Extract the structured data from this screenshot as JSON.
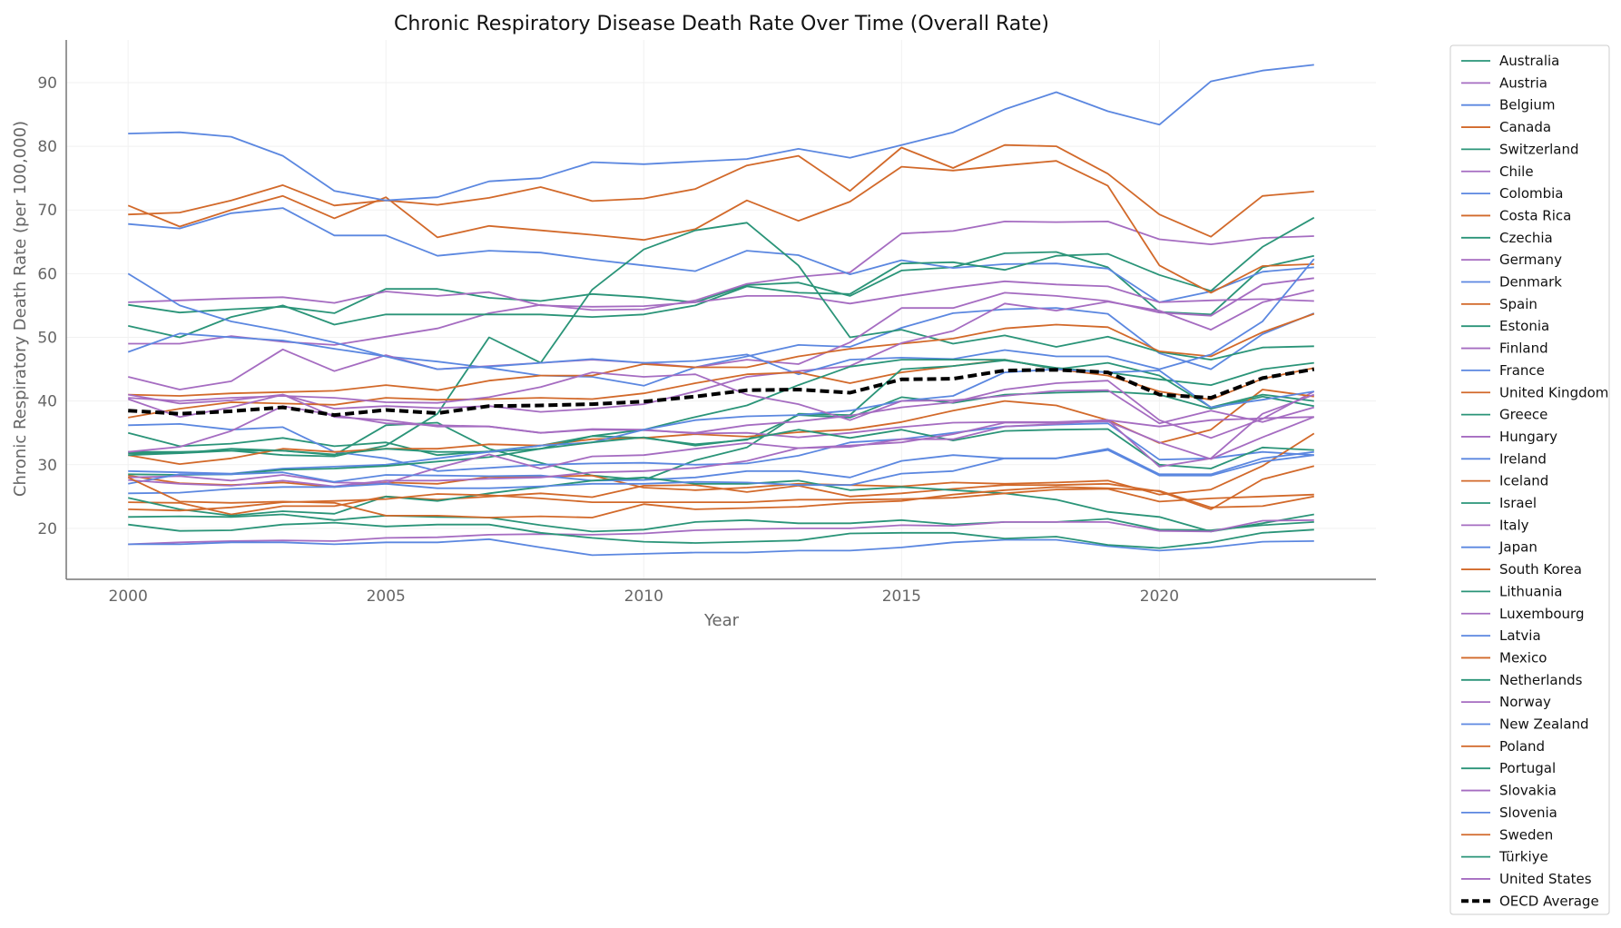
{
  "chart_data": {
    "type": "line",
    "title": "Chronic Respiratory Disease Death Rate Over Time (Overall Rate)",
    "xlabel": "Year",
    "ylabel": "Chronic Respiratory Death Rate (per 100,000)",
    "xlim": [
      1998.8,
      2024.2
    ],
    "ylim": [
      12,
      96.7
    ],
    "xticks": [
      2000,
      2005,
      2010,
      2015,
      2020
    ],
    "yticks": [
      20,
      30,
      40,
      50,
      60,
      70,
      80,
      90
    ],
    "grid": true,
    "legend_placement": "outside-right",
    "colors": {
      "teal": "#2a9478",
      "purple": "#a56cc1",
      "blue": "#5b87e0",
      "orange": "#d2692a",
      "average": "#000000"
    },
    "x": [
      2000,
      2001,
      2002,
      2003,
      2004,
      2005,
      2006,
      2007,
      2008,
      2009,
      2010,
      2011,
      2012,
      2013,
      2014,
      2015,
      2016,
      2017,
      2018,
      2019,
      2020,
      2021,
      2022,
      2023
    ],
    "series": [
      {
        "name": "Australia",
        "color": "teal",
        "values": [
          55.1,
          53.9,
          54.4,
          54.8,
          53.8,
          57.6,
          57.6,
          56.2,
          55.7,
          56.8,
          56.3,
          55.5,
          58.2,
          58.6,
          56.5,
          60.5,
          61,
          63.2,
          63.4,
          61,
          54,
          53.6,
          61,
          62.8
        ]
      },
      {
        "name": "Austria",
        "color": "purple",
        "values": [
          49,
          49,
          50.2,
          49.3,
          48.8,
          50.1,
          51.4,
          53.8,
          55.1,
          54.3,
          54.4,
          55.8,
          58.4,
          59.5,
          60.2,
          66.3,
          66.7,
          68.2,
          68.1,
          68.2,
          65.4,
          64.6,
          65.6,
          65.9
        ]
      },
      {
        "name": "Belgium",
        "color": "blue",
        "values": [
          67.8,
          67.1,
          69.5,
          70.3,
          66,
          66,
          62.8,
          63.6,
          63.3,
          62.2,
          61.3,
          60.4,
          63.6,
          62.9,
          59.9,
          62.1,
          60.9,
          61.5,
          61.6,
          60.8,
          55.5,
          57.2,
          60.3,
          61
        ]
      },
      {
        "name": "Canada",
        "color": "orange",
        "values": [
          69.3,
          69.6,
          71.5,
          73.9,
          70.7,
          71.5,
          70.8,
          71.9,
          73.6,
          71.4,
          71.8,
          73.3,
          77,
          78.5,
          73,
          79.8,
          76.6,
          80.2,
          80,
          75.7,
          69.3,
          65.8,
          72.2,
          72.9
        ]
      },
      {
        "name": "Switzerland",
        "color": "teal",
        "values": [
          51.8,
          50,
          53.2,
          55,
          52,
          53.6,
          53.6,
          53.6,
          53.6,
          53.2,
          53.6,
          55,
          58,
          57,
          56.8,
          61.6,
          61.8,
          60.6,
          62.8,
          63.1,
          59.8,
          57.3,
          64.2,
          68.8
        ]
      },
      {
        "name": "Chile",
        "color": "purple",
        "values": [
          55.5,
          55.8,
          56.1,
          56.3,
          55.4,
          57.2,
          56.5,
          57.1,
          55,
          54.8,
          54.9,
          55.5,
          56.5,
          56.5,
          55.3,
          56.6,
          57.8,
          58.8,
          58.3,
          58,
          55.5,
          55.8,
          56,
          55.7
        ]
      },
      {
        "name": "Colombia",
        "color": "blue",
        "values": [
          60,
          55,
          52.5,
          51,
          49.2,
          47,
          46.2,
          45.2,
          44,
          43.8,
          42.4,
          45.3,
          47,
          48.8,
          48.5,
          51.5,
          53.8,
          54.4,
          54.6,
          53.7,
          47.5,
          45,
          50.5,
          53.8
        ]
      },
      {
        "name": "Costa Rica",
        "color": "orange",
        "values": [
          70.7,
          67.4,
          70,
          72.2,
          68.7,
          72,
          65.7,
          67.5,
          66.8,
          66.1,
          65.3,
          67,
          71.5,
          68.3,
          71.3,
          76.8,
          76.2,
          77,
          77.7,
          73.8,
          61.3,
          57,
          61.2,
          61.5
        ]
      },
      {
        "name": "Czechia",
        "color": "teal",
        "values": [
          31.8,
          31.8,
          32.2,
          31.5,
          31.3,
          33,
          38,
          50,
          46,
          57.5,
          63.8,
          66.8,
          68,
          61.3,
          50,
          51.2,
          49,
          50.3,
          48.5,
          50.1,
          47.7,
          46.5,
          48.4,
          48.6
        ]
      },
      {
        "name": "Germany",
        "color": "purple",
        "values": [
          43.8,
          41.8,
          43.1,
          48.1,
          44.7,
          47.2,
          45,
          45.5,
          46,
          46.5,
          46,
          45.3,
          46.5,
          45.8,
          49.2,
          54.6,
          54.6,
          57,
          56.5,
          55.7,
          53.9,
          53.4,
          58.3,
          59.3
        ]
      },
      {
        "name": "Denmark",
        "color": "blue",
        "values": [
          82,
          82.2,
          81.5,
          78.5,
          73,
          71.5,
          72,
          74.5,
          75,
          77.5,
          77.2,
          77.6,
          78,
          79.6,
          78.2,
          80.2,
          82.2,
          85.8,
          88.5,
          85.5,
          83.4,
          90.2,
          91.9,
          92.8
        ]
      },
      {
        "name": "Spain",
        "color": "orange",
        "values": [
          41,
          40.8,
          41.2,
          41.4,
          41.6,
          42.5,
          41.7,
          43.2,
          44,
          44,
          45.8,
          45.3,
          45.3,
          47,
          48.2,
          49,
          49.8,
          51.4,
          52,
          51.6,
          47.8,
          47,
          50.8,
          53.7
        ]
      },
      {
        "name": "Estonia",
        "color": "teal",
        "values": [
          35,
          32.9,
          33.3,
          34.2,
          32.9,
          33.5,
          31.5,
          32.1,
          33,
          34.5,
          34.2,
          33.2,
          33.9,
          37.8,
          37.4,
          40.6,
          39.7,
          41,
          41.3,
          41.5,
          41,
          38.8,
          40.7,
          39.2
        ]
      },
      {
        "name": "Finland",
        "color": "purple",
        "values": [
          41,
          39.6,
          40.1,
          41,
          38.8,
          39.2,
          38.9,
          39.2,
          38.3,
          38.8,
          39.5,
          41.5,
          43.8,
          44.7,
          45.5,
          49.1,
          51,
          55.3,
          54.2,
          55.6,
          54.2,
          51.2,
          55.5,
          57.4
        ]
      },
      {
        "name": "France",
        "color": "blue",
        "values": [
          47.7,
          50.6,
          50,
          49.5,
          48.2,
          47,
          45,
          45.4,
          46,
          46.6,
          46,
          46.3,
          47.3,
          44.2,
          46.5,
          46.8,
          46.6,
          48,
          47,
          47,
          45,
          47.3,
          52.5,
          62.3
        ]
      },
      {
        "name": "United Kingdom",
        "color": "orange",
        "values": [
          37.4,
          38.8,
          39.8,
          39.6,
          39.4,
          40.5,
          40.2,
          40.3,
          40.5,
          40.3,
          41.2,
          42.8,
          44.2,
          44.5,
          42.8,
          44.5,
          45.5,
          46.5,
          45,
          44,
          41.5,
          40.2,
          43.5,
          45.2
        ]
      },
      {
        "name": "Greece",
        "color": "teal",
        "values": [
          32,
          32,
          32.2,
          32.2,
          31.5,
          36.2,
          36.6,
          32.5,
          30.3,
          28.3,
          27.6,
          30.7,
          32.7,
          38,
          37.8,
          45,
          45.5,
          46.4,
          45.2,
          44.5,
          43.4,
          42.5,
          45,
          46
        ]
      },
      {
        "name": "Hungary",
        "color": "purple",
        "values": [
          40.3,
          37.5,
          39,
          41,
          37.5,
          37,
          36,
          36,
          35,
          35.5,
          35.4,
          35,
          36.2,
          36.8,
          37.7,
          39,
          39.8,
          41.8,
          42.8,
          43.2,
          37,
          34.2,
          37.2,
          41.5
        ]
      },
      {
        "name": "Ireland",
        "color": "blue",
        "values": [
          36.2,
          36.4,
          35.5,
          35.9,
          32,
          31,
          29,
          29.5,
          30,
          30.2,
          30.3,
          30,
          30.2,
          31.4,
          33.5,
          34,
          35,
          36,
          36.3,
          36.5,
          30.8,
          31,
          32,
          31.5
        ]
      },
      {
        "name": "Iceland",
        "color": "orange",
        "values": [
          31.5,
          30.1,
          31,
          32.5,
          32,
          32.5,
          32.5,
          33.2,
          33,
          34,
          34.2,
          34.8,
          34.4,
          35.1,
          35.5,
          36.7,
          38.5,
          40,
          39.3,
          37,
          33.4,
          35.5,
          41.8,
          40.7
        ]
      },
      {
        "name": "Israel",
        "color": "teal",
        "values": [
          31.5,
          31.8,
          32.5,
          32.2,
          31.6,
          32.5,
          32,
          32,
          32.5,
          34.5,
          35.5,
          37.5,
          39.3,
          42.5,
          45.4,
          46.5,
          46.5,
          46.5,
          45,
          46,
          44,
          39,
          41,
          40
        ]
      },
      {
        "name": "Italy",
        "color": "purple",
        "values": [
          32,
          32.8,
          35.3,
          39.2,
          37.8,
          36.5,
          36.2,
          36,
          35,
          35.6,
          35.5,
          34.9,
          35,
          34.3,
          35,
          35.9,
          36.6,
          36.7,
          36.7,
          37,
          36,
          37,
          37.3,
          37.5
        ]
      },
      {
        "name": "Japan",
        "color": "blue",
        "values": [
          29,
          28.8,
          28.6,
          29.4,
          29.7,
          30,
          31,
          32,
          33,
          33.5,
          35.5,
          37,
          37.6,
          37.8,
          38.5,
          40,
          40.8,
          44.5,
          45,
          44.5,
          44.8,
          39,
          40.2,
          41.5
        ]
      },
      {
        "name": "South Korea",
        "color": "orange",
        "values": [
          28.3,
          27.1,
          26.8,
          27.2,
          26.5,
          27.2,
          27,
          28.1,
          28.1,
          28.3,
          26.4,
          26,
          26.4,
          27,
          26.8,
          26.6,
          27.2,
          27,
          27.2,
          27.5,
          25.3,
          26.1,
          29.8,
          34.9
        ]
      },
      {
        "name": "Lithuania",
        "color": "teal",
        "values": [
          28.5,
          28.4,
          28.5,
          29.2,
          29.4,
          29.8,
          30.5,
          31.2,
          32.5,
          33.5,
          34.3,
          33,
          34,
          35.5,
          34.2,
          35.5,
          33.8,
          35.3,
          35.5,
          35.6,
          30,
          29.4,
          32.7,
          32.3
        ]
      },
      {
        "name": "Luxembourg",
        "color": "purple",
        "values": [
          28,
          28.2,
          27.5,
          28.4,
          27.2,
          27.1,
          29.5,
          31.6,
          29.4,
          31.3,
          31.5,
          32.5,
          33.4,
          32.6,
          32.8,
          34,
          34,
          36,
          36.4,
          37,
          29.7,
          31,
          38,
          41
        ]
      },
      {
        "name": "Latvia",
        "color": "blue",
        "values": [
          27,
          28.5,
          28.5,
          28.8,
          27.3,
          28.4,
          28.3,
          28.2,
          28.3,
          27.5,
          27.6,
          28,
          29,
          29,
          28,
          30.6,
          31.5,
          31,
          31,
          32.5,
          28.5,
          28.5,
          31,
          32
        ]
      },
      {
        "name": "Mexico",
        "color": "orange",
        "values": [
          24.1,
          24,
          22.2,
          23.5,
          23.5,
          25,
          24.5,
          25,
          25.5,
          24.9,
          26.7,
          26.8,
          25.7,
          26.7,
          25,
          25.5,
          26.2,
          26.8,
          26.8,
          27,
          25.8,
          23,
          27.7,
          29.8
        ]
      },
      {
        "name": "Netherlands",
        "color": "teal",
        "values": [
          24.8,
          23,
          22,
          22.7,
          22.3,
          25,
          24.3,
          25.5,
          26.5,
          27.5,
          28,
          27,
          27,
          27.5,
          26,
          26.5,
          26,
          25.5,
          24.5,
          22.6,
          21.8,
          19.5,
          20.8,
          22.2
        ]
      },
      {
        "name": "Norway",
        "color": "purple",
        "values": [
          27.6,
          27,
          26.7,
          27.5,
          26.6,
          27.5,
          27.5,
          27.8,
          28,
          28.8,
          29,
          29.5,
          30.6,
          32.6,
          33,
          33.5,
          34.8,
          36.6,
          36.6,
          36.8,
          33.5,
          30.9,
          34.3,
          37.5
        ]
      },
      {
        "name": "New Zealand",
        "color": "blue",
        "values": [
          25.5,
          25.6,
          26.2,
          26.5,
          26.5,
          27,
          26.3,
          26.3,
          26.6,
          27,
          27,
          27.3,
          27.2,
          26.8,
          26.8,
          28.6,
          29,
          31,
          31,
          32.3,
          28.3,
          28.3,
          30.5,
          31.5
        ]
      },
      {
        "name": "Poland",
        "color": "orange",
        "values": [
          23,
          22.8,
          23.3,
          24.1,
          24.3,
          24.6,
          25.4,
          25.2,
          24.7,
          24.1,
          24.1,
          24.1,
          24.1,
          24.5,
          24.5,
          24.6,
          24.8,
          25.5,
          26.1,
          26.2,
          24.2,
          24.7,
          25,
          25.3
        ]
      },
      {
        "name": "Portugal",
        "color": "teal",
        "values": [
          21.8,
          21.9,
          21.8,
          22.2,
          21.3,
          22,
          21.8,
          21.7,
          20.5,
          19.5,
          19.8,
          21,
          21.3,
          20.8,
          20.8,
          21.3,
          20.6,
          21,
          21,
          21.5,
          19.8,
          19.7,
          20.5,
          21
        ]
      },
      {
        "name": "Slovakia",
        "color": "purple",
        "values": [
          17.5,
          17.8,
          18,
          18.1,
          18,
          18.5,
          18.6,
          19,
          19.1,
          19,
          19.2,
          19.7,
          19.9,
          20,
          20,
          20.5,
          20.4,
          21,
          21,
          21,
          19.6,
          19.5,
          21.2,
          21.3
        ]
      },
      {
        "name": "Slovenia",
        "color": "blue",
        "values": [
          17.5,
          17.5,
          17.8,
          17.8,
          17.5,
          17.8,
          17.8,
          18.3,
          17,
          15.8,
          16,
          16.2,
          16.2,
          16.5,
          16.5,
          17,
          17.8,
          18.2,
          18.2,
          17.2,
          16.5,
          17,
          17.9,
          18
        ]
      },
      {
        "name": "Sweden",
        "color": "orange",
        "values": [
          28,
          24.2,
          24,
          24.2,
          24,
          22,
          22,
          21.7,
          21.9,
          21.7,
          23.8,
          23,
          23.2,
          23.4,
          24,
          24.3,
          25.3,
          26,
          26.5,
          26.3,
          25.9,
          23.3,
          23.5,
          25
        ]
      },
      {
        "name": "Türkiye",
        "color": "teal",
        "values": [
          20.6,
          19.6,
          19.7,
          20.6,
          20.9,
          20.3,
          20.6,
          20.6,
          19.3,
          18.5,
          17.9,
          17.7,
          17.9,
          18.1,
          19.2,
          19.3,
          19.3,
          18.4,
          18.7,
          17.4,
          16.9,
          17.8,
          19.3,
          19.8
        ]
      },
      {
        "name": "United States",
        "color": "purple",
        "values": [
          40.5,
          40,
          40.5,
          40.8,
          40.5,
          39.8,
          39.7,
          40.6,
          42.2,
          44.5,
          43.8,
          44.2,
          41,
          39.5,
          37,
          40,
          40.1,
          40.8,
          41.6,
          41.7,
          36.5,
          38.5,
          36.7,
          39
        ]
      },
      {
        "name": "OECD Average",
        "color": "average",
        "dashed": true,
        "values": [
          38.5,
          38,
          38.4,
          39,
          37.8,
          38.6,
          38.1,
          39.2,
          39.3,
          39.5,
          39.9,
          40.7,
          41.7,
          41.8,
          41.3,
          43.4,
          43.5,
          44.8,
          44.9,
          44.5,
          41,
          40.5,
          43.6,
          45
        ]
      }
    ]
  }
}
